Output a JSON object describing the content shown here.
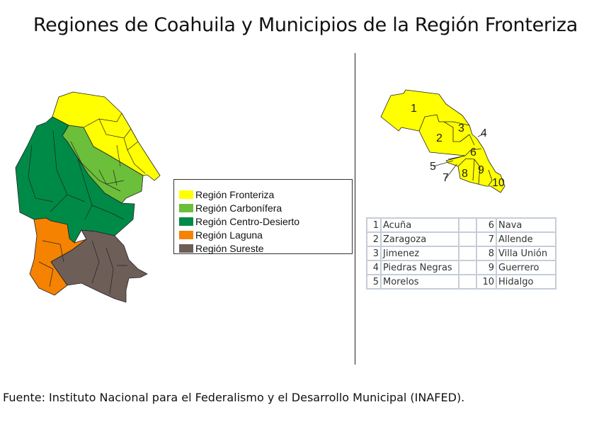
{
  "title": "Regiones de Coahuila y Municipios de la Región Fronteriza",
  "legend": [
    {
      "label": "Región Fronteriza",
      "color": "#ffff00"
    },
    {
      "label": "Región Carbonífera",
      "color": "#6cbf3a"
    },
    {
      "label": "Región Centro-Desierto",
      "color": "#008a47"
    },
    {
      "label": "Región Laguna",
      "color": "#f58200"
    },
    {
      "label": "Región Sureste",
      "color": "#6e5e58"
    }
  ],
  "frontier_map_labels": [
    "1",
    "2",
    "3",
    "4",
    "5",
    "6",
    "7",
    "8",
    "9",
    "10"
  ],
  "municipalities": [
    {
      "n": "1",
      "name": "Acuña"
    },
    {
      "n": "2",
      "name": "Zaragoza"
    },
    {
      "n": "3",
      "name": "Jimenez"
    },
    {
      "n": "4",
      "name": "Piedras Negras"
    },
    {
      "n": "5",
      "name": "Morelos"
    },
    {
      "n": "6",
      "name": "Nava"
    },
    {
      "n": "7",
      "name": "Allende"
    },
    {
      "n": "8",
      "name": "Villa Unión"
    },
    {
      "n": "9",
      "name": "Guerrero"
    },
    {
      "n": "10",
      "name": "Hidalgo"
    }
  ],
  "footer": "Fuente: Instituto Nacional para el Federalismo y el Desarrollo Municipal (INAFED)."
}
